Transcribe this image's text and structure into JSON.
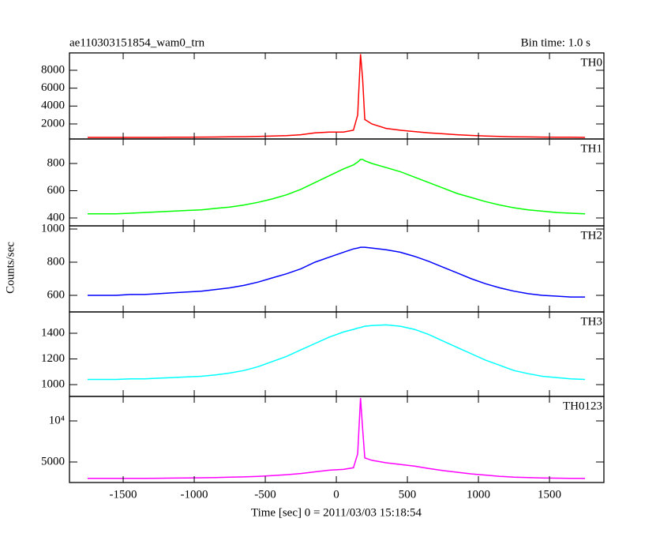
{
  "figure": {
    "title": "ae110303151854_wam0_trn",
    "subtitle": "Bin time: 1.0 s",
    "xlabel": "Time [sec] 0 = 2011/03/03 15:18:54",
    "ylabel": "Counts/sec"
  },
  "chart_data": [
    {
      "type": "line",
      "label": "TH0",
      "color": "#ff0000",
      "x": [
        -1750,
        -1650,
        -1550,
        -1450,
        -1350,
        -1250,
        -1150,
        -1050,
        -950,
        -850,
        -750,
        -650,
        -550,
        -450,
        -350,
        -250,
        -150,
        -50,
        50,
        120,
        150,
        170,
        185,
        200,
        250,
        350,
        450,
        550,
        650,
        750,
        850,
        950,
        1050,
        1150,
        1250,
        1350,
        1450,
        1550,
        1650,
        1750
      ],
      "values": [
        500,
        500,
        500,
        500,
        500,
        500,
        520,
        520,
        530,
        540,
        560,
        580,
        600,
        650,
        700,
        800,
        1000,
        1100,
        1100,
        1300,
        3000,
        9800,
        7000,
        2500,
        2000,
        1500,
        1300,
        1150,
        1000,
        900,
        800,
        720,
        650,
        600,
        570,
        550,
        530,
        520,
        510,
        500
      ],
      "xlim": [
        -1878,
        1883
      ],
      "xticks": [
        -1500,
        -1000,
        -500,
        0,
        500,
        1000,
        1500
      ],
      "ylim": [
        320,
        9940
      ],
      "yticks": [
        2000,
        4000,
        6000,
        8000
      ]
    },
    {
      "type": "line",
      "label": "TH1",
      "color": "#00ff00",
      "x": [
        -1750,
        -1650,
        -1550,
        -1450,
        -1350,
        -1250,
        -1150,
        -1050,
        -950,
        -850,
        -750,
        -650,
        -550,
        -450,
        -350,
        -250,
        -150,
        -50,
        50,
        120,
        150,
        170,
        185,
        200,
        250,
        350,
        450,
        550,
        650,
        750,
        850,
        950,
        1050,
        1150,
        1250,
        1350,
        1450,
        1550,
        1650,
        1750
      ],
      "values": [
        430,
        430,
        430,
        435,
        440,
        445,
        450,
        455,
        460,
        470,
        480,
        495,
        515,
        540,
        570,
        610,
        660,
        710,
        760,
        790,
        810,
        830,
        830,
        820,
        800,
        770,
        740,
        700,
        660,
        620,
        580,
        550,
        520,
        495,
        475,
        460,
        450,
        440,
        435,
        430
      ],
      "xlim": [
        -1878,
        1883
      ],
      "xticks": [
        -1500,
        -1000,
        -500,
        0,
        500,
        1000,
        1500
      ],
      "ylim": [
        342,
        980
      ],
      "yticks": [
        400,
        600,
        800
      ]
    },
    {
      "type": "line",
      "label": "TH2",
      "color": "#0000ff",
      "x": [
        -1750,
        -1650,
        -1550,
        -1450,
        -1350,
        -1250,
        -1150,
        -1050,
        -950,
        -850,
        -750,
        -650,
        -550,
        -450,
        -350,
        -250,
        -150,
        -50,
        50,
        120,
        150,
        170,
        185,
        200,
        250,
        350,
        450,
        550,
        650,
        750,
        850,
        950,
        1050,
        1150,
        1250,
        1350,
        1450,
        1550,
        1650,
        1750
      ],
      "values": [
        600,
        600,
        600,
        605,
        605,
        610,
        615,
        620,
        625,
        635,
        645,
        660,
        680,
        705,
        730,
        760,
        800,
        830,
        860,
        880,
        885,
        890,
        890,
        890,
        885,
        875,
        860,
        835,
        805,
        770,
        735,
        700,
        670,
        645,
        625,
        610,
        600,
        595,
        590,
        590
      ],
      "xlim": [
        -1878,
        1883
      ],
      "xticks": [
        -1500,
        -1000,
        -500,
        0,
        500,
        1000,
        1500
      ],
      "ylim": [
        500,
        1019
      ],
      "yticks": [
        600,
        800,
        1000
      ]
    },
    {
      "type": "line",
      "label": "TH3",
      "color": "#00ffff",
      "x": [
        -1750,
        -1650,
        -1550,
        -1450,
        -1350,
        -1250,
        -1150,
        -1050,
        -950,
        -850,
        -750,
        -650,
        -550,
        -450,
        -350,
        -250,
        -150,
        -50,
        50,
        120,
        150,
        170,
        185,
        200,
        250,
        350,
        450,
        550,
        650,
        750,
        850,
        950,
        1050,
        1150,
        1250,
        1350,
        1450,
        1550,
        1650,
        1750
      ],
      "values": [
        1040,
        1040,
        1040,
        1045,
        1045,
        1050,
        1055,
        1060,
        1065,
        1075,
        1090,
        1110,
        1140,
        1180,
        1220,
        1270,
        1320,
        1370,
        1410,
        1430,
        1440,
        1445,
        1450,
        1455,
        1460,
        1465,
        1455,
        1430,
        1390,
        1340,
        1290,
        1240,
        1190,
        1150,
        1110,
        1085,
        1065,
        1055,
        1045,
        1040
      ],
      "xlim": [
        -1878,
        1883
      ],
      "xticks": [
        -1500,
        -1000,
        -500,
        0,
        500,
        1000,
        1500
      ],
      "ylim": [
        908,
        1566
      ],
      "yticks": [
        1000,
        1200,
        1400
      ]
    },
    {
      "type": "line",
      "label": "TH0123",
      "color": "#ff00ff",
      "x": [
        -1750,
        -1650,
        -1550,
        -1450,
        -1350,
        -1250,
        -1150,
        -1050,
        -950,
        -850,
        -750,
        -650,
        -550,
        -450,
        -350,
        -250,
        -150,
        -50,
        50,
        120,
        150,
        170,
        185,
        200,
        250,
        350,
        450,
        550,
        650,
        750,
        850,
        950,
        1050,
        1150,
        1250,
        1350,
        1450,
        1550,
        1650,
        1750
      ],
      "values": [
        3000,
        3000,
        3000,
        3000,
        3000,
        3020,
        3040,
        3060,
        3080,
        3100,
        3140,
        3180,
        3250,
        3350,
        3450,
        3600,
        3800,
        4000,
        4100,
        4300,
        6000,
        12800,
        9000,
        5500,
        5200,
        4900,
        4700,
        4500,
        4200,
        3950,
        3750,
        3550,
        3400,
        3250,
        3150,
        3100,
        3050,
        3030,
        3010,
        3000
      ],
      "xlim": [
        -1878,
        1883
      ],
      "xticks": [
        -1500,
        -1000,
        -500,
        0,
        500,
        1000,
        1500
      ],
      "ylim": [
        2500,
        12980
      ],
      "yticks": [
        5000,
        {
          "value": 10000,
          "label": "10⁴"
        }
      ]
    }
  ]
}
